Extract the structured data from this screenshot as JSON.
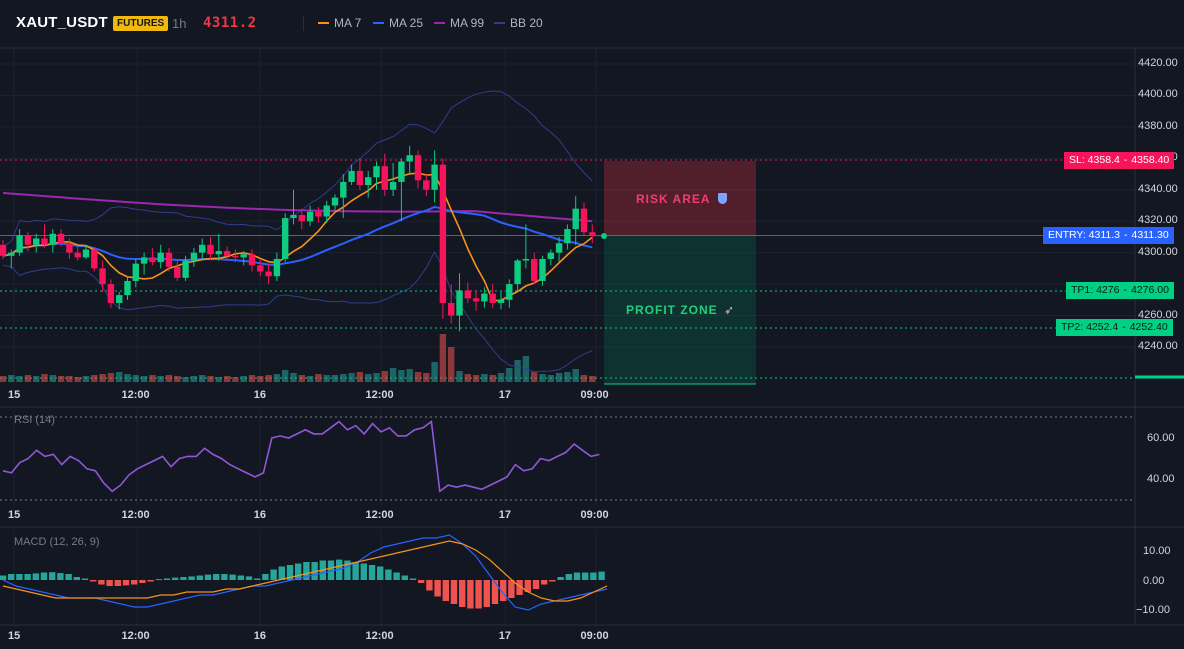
{
  "header": {
    "symbol": "XAUT_USDT",
    "badge": "FUTURES",
    "interval": "1h",
    "last_price": "4311.2",
    "indicators": [
      {
        "label": "MA 7",
        "color": "#f7931a"
      },
      {
        "label": "MA 25",
        "color": "#2962ff"
      },
      {
        "label": "MA 99",
        "color": "#9c27b0"
      },
      {
        "label": "BB 20",
        "color": "#2f3d8f"
      }
    ]
  },
  "price_axis": {
    "ticks": [
      "4420.00",
      "4400.00",
      "4380.00",
      "4360.00",
      "4340.00",
      "4320.00",
      "4300.00",
      "4260.00",
      "4240.00"
    ]
  },
  "time_axis": {
    "ticks": [
      "15",
      "12:00",
      "16",
      "12:00",
      "17",
      "09:00"
    ]
  },
  "trade_levels": {
    "sl": {
      "label": "SL: 4358.4",
      "value": "4358.40",
      "color": "#f6155a"
    },
    "entry": {
      "label": "ENTRY: 4311.3",
      "value": "4311.30",
      "color": "#2962ff"
    },
    "tp1": {
      "label": "TP1: 4276",
      "value": "4276.00",
      "color": "#00d084"
    },
    "tp2": {
      "label": "TP2: 4252.4",
      "value": "4252.40",
      "color": "#00d084"
    }
  },
  "zones": {
    "risk": "RISK AREA",
    "risk_icon": "shield-icon",
    "profit": "PROFIT ZONE",
    "profit_icon": "rocket-icon"
  },
  "rsi": {
    "label": "RSI (14)",
    "ticks": [
      "60.00",
      "40.00"
    ],
    "values": [
      44,
      43,
      48,
      50,
      54,
      51,
      52,
      47,
      51,
      49,
      45,
      44,
      38,
      34,
      37,
      42,
      45,
      47,
      49,
      51,
      46,
      50,
      51,
      51,
      55,
      52,
      50,
      47,
      45,
      43,
      41,
      43,
      60,
      61,
      60,
      62,
      64,
      62,
      62,
      65,
      68,
      64,
      66,
      62,
      67,
      63,
      65,
      61,
      61,
      64,
      65,
      68,
      34,
      37,
      36,
      37,
      36,
      35,
      37,
      39,
      41,
      47,
      44,
      45,
      50,
      49,
      51,
      53,
      57,
      54,
      51,
      52
    ],
    "color": "#8f58d8"
  },
  "macd": {
    "label": "MACD (12, 26, 9)",
    "ticks": [
      "10.00",
      "0.00",
      "−10.00"
    ],
    "hist": [
      1.5,
      2,
      2,
      2,
      2.2,
      2.5,
      2.6,
      2.3,
      2,
      1,
      0.5,
      -0.5,
      -1.5,
      -2,
      -2,
      -1.8,
      -1.5,
      -1,
      -0.5,
      0.3,
      0.5,
      0.8,
      1,
      1.2,
      1.5,
      1.8,
      2,
      2,
      1.8,
      1.5,
      1.2,
      0.5,
      2,
      3.5,
      4.5,
      5,
      5.5,
      6,
      6,
      6.5,
      6.5,
      6.8,
      6.5,
      6,
      5.5,
      5,
      4.5,
      3.5,
      2.5,
      1.5,
      0.5,
      -1,
      -3.5,
      -5.5,
      -7,
      -8,
      -9,
      -9.5,
      -9.5,
      -9,
      -8,
      -7,
      -6,
      -5,
      -4,
      -3,
      -1.5,
      -0.5,
      1,
      2,
      2.5,
      2.5,
      2.5,
      2.8
    ],
    "macd_line": [
      0,
      -2,
      -3,
      -4,
      -5,
      -6,
      -6,
      -6,
      -7,
      -8,
      -9,
      -9,
      -8,
      -7,
      -6,
      -5,
      -5,
      -4,
      -3,
      -2,
      -2,
      -1,
      0,
      1,
      2,
      3,
      4,
      6,
      9,
      11,
      12,
      13,
      14,
      14,
      15,
      12,
      8,
      2,
      -4,
      -9,
      -10,
      -8,
      -7,
      -6,
      -5,
      -4,
      -3
    ],
    "signal_line": [
      -2,
      -3,
      -4,
      -5,
      -6,
      -6,
      -6,
      -6,
      -6,
      -6,
      -6,
      -6,
      -5,
      -5,
      -4,
      -4,
      -4,
      -3,
      -3,
      -2,
      -1,
      0,
      1,
      2,
      3,
      4,
      5,
      6,
      7,
      8,
      9,
      10,
      11,
      12,
      13,
      12,
      10,
      7,
      3,
      -1,
      -4,
      -6,
      -7,
      -7,
      -6,
      -4,
      -2
    ],
    "hist_up": "#26a69a",
    "hist_down": "#ef5350",
    "macd_color": "#2962ff",
    "signal_color": "#f7931a"
  },
  "chart_data": {
    "type": "candlestick",
    "title": "",
    "ylim": [
      4227,
      4428
    ],
    "candles": [
      [
        4305,
        4308,
        4296,
        4298
      ],
      [
        4298,
        4302,
        4290,
        4300
      ],
      [
        4300,
        4315,
        4298,
        4311
      ],
      [
        4311,
        4313,
        4301,
        4305
      ],
      [
        4305,
        4312,
        4300,
        4309
      ],
      [
        4309,
        4318,
        4303,
        4305
      ],
      [
        4305,
        4315,
        4300,
        4312
      ],
      [
        4312,
        4315,
        4304,
        4306
      ],
      [
        4306,
        4309,
        4296,
        4300
      ],
      [
        4300,
        4304,
        4295,
        4297
      ],
      [
        4297,
        4305,
        4296,
        4302
      ],
      [
        4302,
        4303,
        4288,
        4290
      ],
      [
        4290,
        4295,
        4275,
        4280
      ],
      [
        4280,
        4283,
        4265,
        4268
      ],
      [
        4268,
        4275,
        4264,
        4273
      ],
      [
        4273,
        4285,
        4270,
        4282
      ],
      [
        4282,
        4296,
        4278,
        4293
      ],
      [
        4293,
        4300,
        4286,
        4297
      ],
      [
        4297,
        4303,
        4292,
        4294
      ],
      [
        4294,
        4305,
        4290,
        4300
      ],
      [
        4300,
        4303,
        4288,
        4291
      ],
      [
        4291,
        4296,
        4282,
        4284
      ],
      [
        4284,
        4298,
        4282,
        4295
      ],
      [
        4295,
        4303,
        4291,
        4300
      ],
      [
        4300,
        4309,
        4296,
        4305
      ],
      [
        4305,
        4310,
        4296,
        4299
      ],
      [
        4299,
        4312,
        4295,
        4301
      ],
      [
        4301,
        4304,
        4295,
        4298
      ],
      [
        4298,
        4302,
        4294,
        4297
      ],
      [
        4297,
        4301,
        4292,
        4299
      ],
      [
        4299,
        4302,
        4288,
        4292
      ],
      [
        4292,
        4296,
        4285,
        4288
      ],
      [
        4288,
        4293,
        4280,
        4285
      ],
      [
        4285,
        4300,
        4282,
        4296
      ],
      [
        4296,
        4325,
        4294,
        4322
      ],
      [
        4322,
        4340,
        4318,
        4324
      ],
      [
        4324,
        4328,
        4315,
        4320
      ],
      [
        4320,
        4330,
        4317,
        4326
      ],
      [
        4326,
        4329,
        4319,
        4323
      ],
      [
        4323,
        4333,
        4319,
        4330
      ],
      [
        4330,
        4337,
        4327,
        4335
      ],
      [
        4335,
        4350,
        4322,
        4345
      ],
      [
        4345,
        4356,
        4343,
        4352
      ],
      [
        4352,
        4360,
        4340,
        4343
      ],
      [
        4343,
        4352,
        4335,
        4348
      ],
      [
        4348,
        4358,
        4340,
        4355
      ],
      [
        4355,
        4363,
        4336,
        4340
      ],
      [
        4340,
        4357,
        4336,
        4345
      ],
      [
        4345,
        4360,
        4320,
        4358
      ],
      [
        4358,
        4368,
        4350,
        4362
      ],
      [
        4362,
        4365,
        4341,
        4346
      ],
      [
        4346,
        4350,
        4336,
        4340
      ],
      [
        4340,
        4365,
        4332,
        4356
      ],
      [
        4356,
        4360,
        4258,
        4268
      ],
      [
        4268,
        4280,
        4255,
        4260
      ],
      [
        4260,
        4287,
        4250,
        4276
      ],
      [
        4276,
        4281,
        4268,
        4271
      ],
      [
        4271,
        4276,
        4263,
        4269
      ],
      [
        4269,
        4278,
        4265,
        4274
      ],
      [
        4274,
        4280,
        4265,
        4268
      ],
      [
        4268,
        4275,
        4264,
        4270
      ],
      [
        4270,
        4283,
        4265,
        4280
      ],
      [
        4280,
        4296,
        4276,
        4295
      ],
      [
        4295,
        4318,
        4290,
        4296
      ],
      [
        4296,
        4300,
        4280,
        4282
      ],
      [
        4282,
        4298,
        4279,
        4296
      ],
      [
        4296,
        4302,
        4292,
        4300
      ],
      [
        4300,
        4310,
        4294,
        4306
      ],
      [
        4306,
        4318,
        4302,
        4315
      ],
      [
        4315,
        4336,
        4305,
        4328
      ],
      [
        4328,
        4332,
        4311,
        4313
      ],
      [
        4313,
        4318,
        4306,
        4311
      ]
    ],
    "volumes": [
      6,
      7,
      6,
      7,
      6,
      8,
      7,
      6,
      6,
      5,
      6,
      7,
      8,
      9,
      10,
      8,
      7,
      6,
      7,
      6,
      7,
      6,
      5,
      6,
      7,
      6,
      5,
      6,
      5,
      6,
      7,
      6,
      7,
      8,
      12,
      9,
      7,
      6,
      8,
      7,
      7,
      8,
      9,
      10,
      8,
      9,
      11,
      14,
      12,
      13,
      10,
      9,
      20,
      48,
      35,
      11,
      8,
      7,
      8,
      7,
      9,
      14,
      22,
      26,
      10,
      8,
      7,
      9,
      10,
      13,
      7,
      6
    ]
  }
}
